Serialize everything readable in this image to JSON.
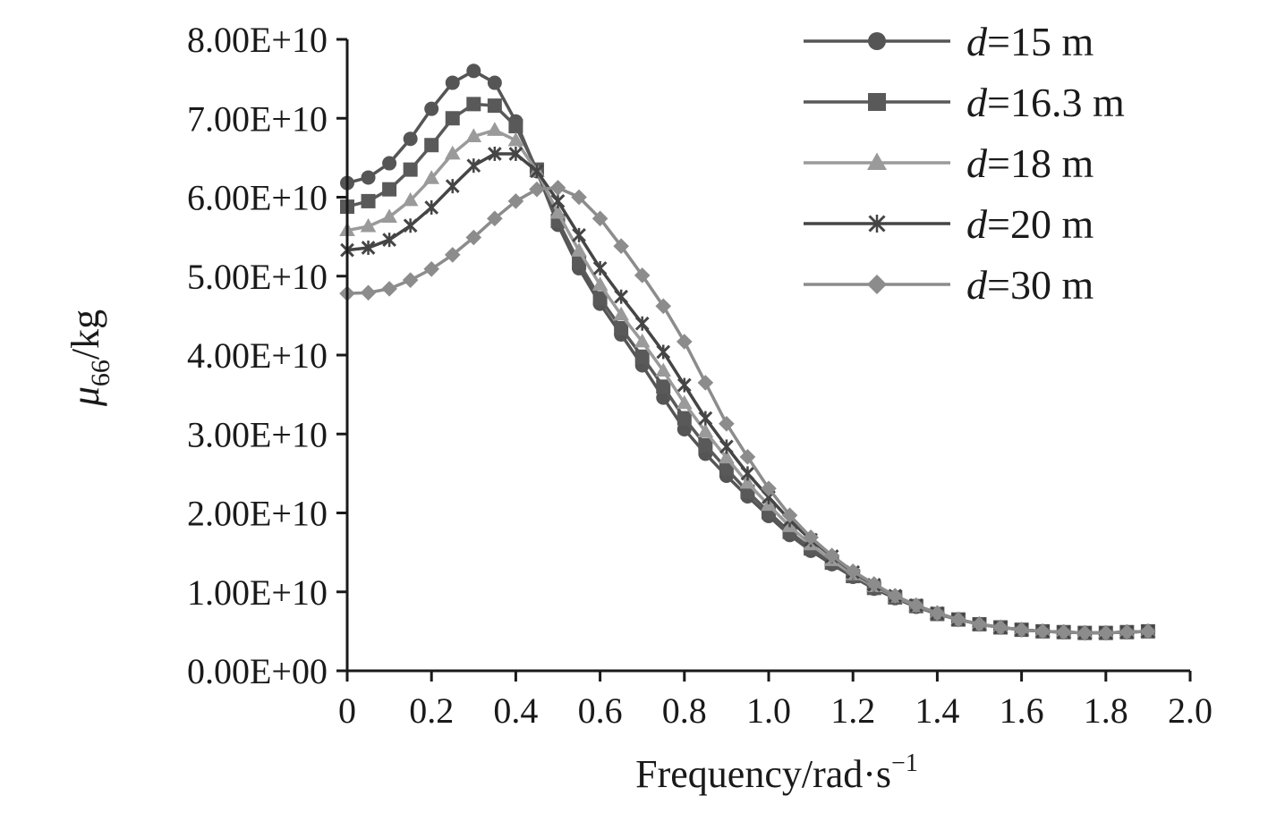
{
  "chart_data": {
    "type": "line",
    "title": "",
    "xlabel": "Frequency/rad·s",
    "xlabel_sup": "−1",
    "ylabel_symbol": "μ",
    "ylabel_sub": "66",
    "ylabel_unit": "/kg",
    "xlim": [
      0,
      2.0
    ],
    "ylim": [
      0,
      80000000000
    ],
    "x_ticks": [
      0,
      0.2,
      0.4,
      0.6,
      0.8,
      1.0,
      1.2,
      1.4,
      1.6,
      1.8,
      2.0
    ],
    "x_tick_labels": [
      "0",
      "0.2",
      "0.4",
      "0.6",
      "0.8",
      "1.0",
      "1.2",
      "1.4",
      "1.6",
      "1.8",
      "2.0"
    ],
    "y_ticks": [
      0,
      10000000000,
      20000000000,
      30000000000,
      40000000000,
      50000000000,
      60000000000,
      70000000000,
      80000000000
    ],
    "y_tick_labels": [
      "0.00E+00",
      "1.00E+10",
      "2.00E+10",
      "3.00E+10",
      "4.00E+10",
      "5.00E+10",
      "6.00E+10",
      "7.00E+10",
      "8.00E+10"
    ],
    "grid": false,
    "legend_position": "top-right",
    "x": [
      0,
      0.05,
      0.1,
      0.15,
      0.2,
      0.25,
      0.3,
      0.35,
      0.4,
      0.45,
      0.5,
      0.55,
      0.6,
      0.65,
      0.7,
      0.75,
      0.8,
      0.85,
      0.9,
      0.95,
      1.0,
      1.05,
      1.1,
      1.15,
      1.2,
      1.25,
      1.3,
      1.35,
      1.4,
      1.45,
      1.5,
      1.55,
      1.6,
      1.65,
      1.7,
      1.75,
      1.8,
      1.85,
      1.9
    ],
    "series": [
      {
        "name": "d=15 m",
        "name_var": "d",
        "name_rest": "=15 m",
        "marker": "circle",
        "color": "#555555",
        "values": [
          6.18,
          6.25,
          6.43,
          6.74,
          7.12,
          7.45,
          7.6,
          7.45,
          6.96,
          6.33,
          5.65,
          5.1,
          4.65,
          4.26,
          3.87,
          3.46,
          3.06,
          2.75,
          2.47,
          2.21,
          1.96,
          1.72,
          1.52,
          1.35,
          1.19,
          1.04,
          0.92,
          0.81,
          0.72,
          0.65,
          0.59,
          0.55,
          0.52,
          0.5,
          0.49,
          0.48,
          0.48,
          0.49,
          0.5
        ]
      },
      {
        "name": "d=16.3 m",
        "name_var": "d",
        "name_rest": "=16.3 m",
        "marker": "square",
        "color": "#595959",
        "values": [
          5.88,
          5.95,
          6.1,
          6.35,
          6.66,
          7.0,
          7.18,
          7.16,
          6.9,
          6.35,
          5.7,
          5.17,
          4.72,
          4.34,
          3.98,
          3.6,
          3.2,
          2.86,
          2.56,
          2.27,
          2.01,
          1.76,
          1.55,
          1.37,
          1.2,
          1.05,
          0.93,
          0.82,
          0.72,
          0.65,
          0.59,
          0.55,
          0.52,
          0.5,
          0.49,
          0.48,
          0.48,
          0.49,
          0.5
        ]
      },
      {
        "name": "d=18 m",
        "name_var": "d",
        "name_rest": "=18 m",
        "marker": "triangle",
        "color": "#9a9a9a",
        "values": [
          5.58,
          5.63,
          5.75,
          5.96,
          6.24,
          6.55,
          6.77,
          6.85,
          6.72,
          6.33,
          5.8,
          5.32,
          4.89,
          4.51,
          4.17,
          3.8,
          3.39,
          3.03,
          2.7,
          2.38,
          2.1,
          1.83,
          1.6,
          1.4,
          1.22,
          1.07,
          0.94,
          0.82,
          0.73,
          0.65,
          0.59,
          0.55,
          0.52,
          0.5,
          0.49,
          0.48,
          0.48,
          0.49,
          0.5
        ]
      },
      {
        "name": "d=20 m",
        "name_var": "d",
        "name_rest": "=20 m",
        "marker": "x",
        "color": "#454545",
        "values": [
          5.33,
          5.36,
          5.46,
          5.64,
          5.87,
          6.14,
          6.4,
          6.55,
          6.55,
          6.33,
          5.95,
          5.52,
          5.1,
          4.74,
          4.4,
          4.04,
          3.62,
          3.2,
          2.84,
          2.5,
          2.2,
          1.91,
          1.66,
          1.45,
          1.25,
          1.09,
          0.95,
          0.83,
          0.73,
          0.65,
          0.59,
          0.55,
          0.52,
          0.5,
          0.49,
          0.48,
          0.48,
          0.49,
          0.5
        ]
      },
      {
        "name": "d=30 m",
        "name_var": "d",
        "name_rest": "=30 m",
        "marker": "diamond",
        "color": "#8c8c8c",
        "values": [
          4.78,
          4.79,
          4.84,
          4.95,
          5.09,
          5.27,
          5.49,
          5.73,
          5.95,
          6.1,
          6.12,
          6.0,
          5.73,
          5.38,
          5.01,
          4.62,
          4.17,
          3.65,
          3.13,
          2.71,
          2.31,
          1.97,
          1.69,
          1.46,
          1.26,
          1.1,
          0.95,
          0.83,
          0.73,
          0.65,
          0.59,
          0.55,
          0.52,
          0.5,
          0.49,
          0.48,
          0.48,
          0.49,
          0.5
        ]
      }
    ],
    "value_scale": 10000000000
  }
}
